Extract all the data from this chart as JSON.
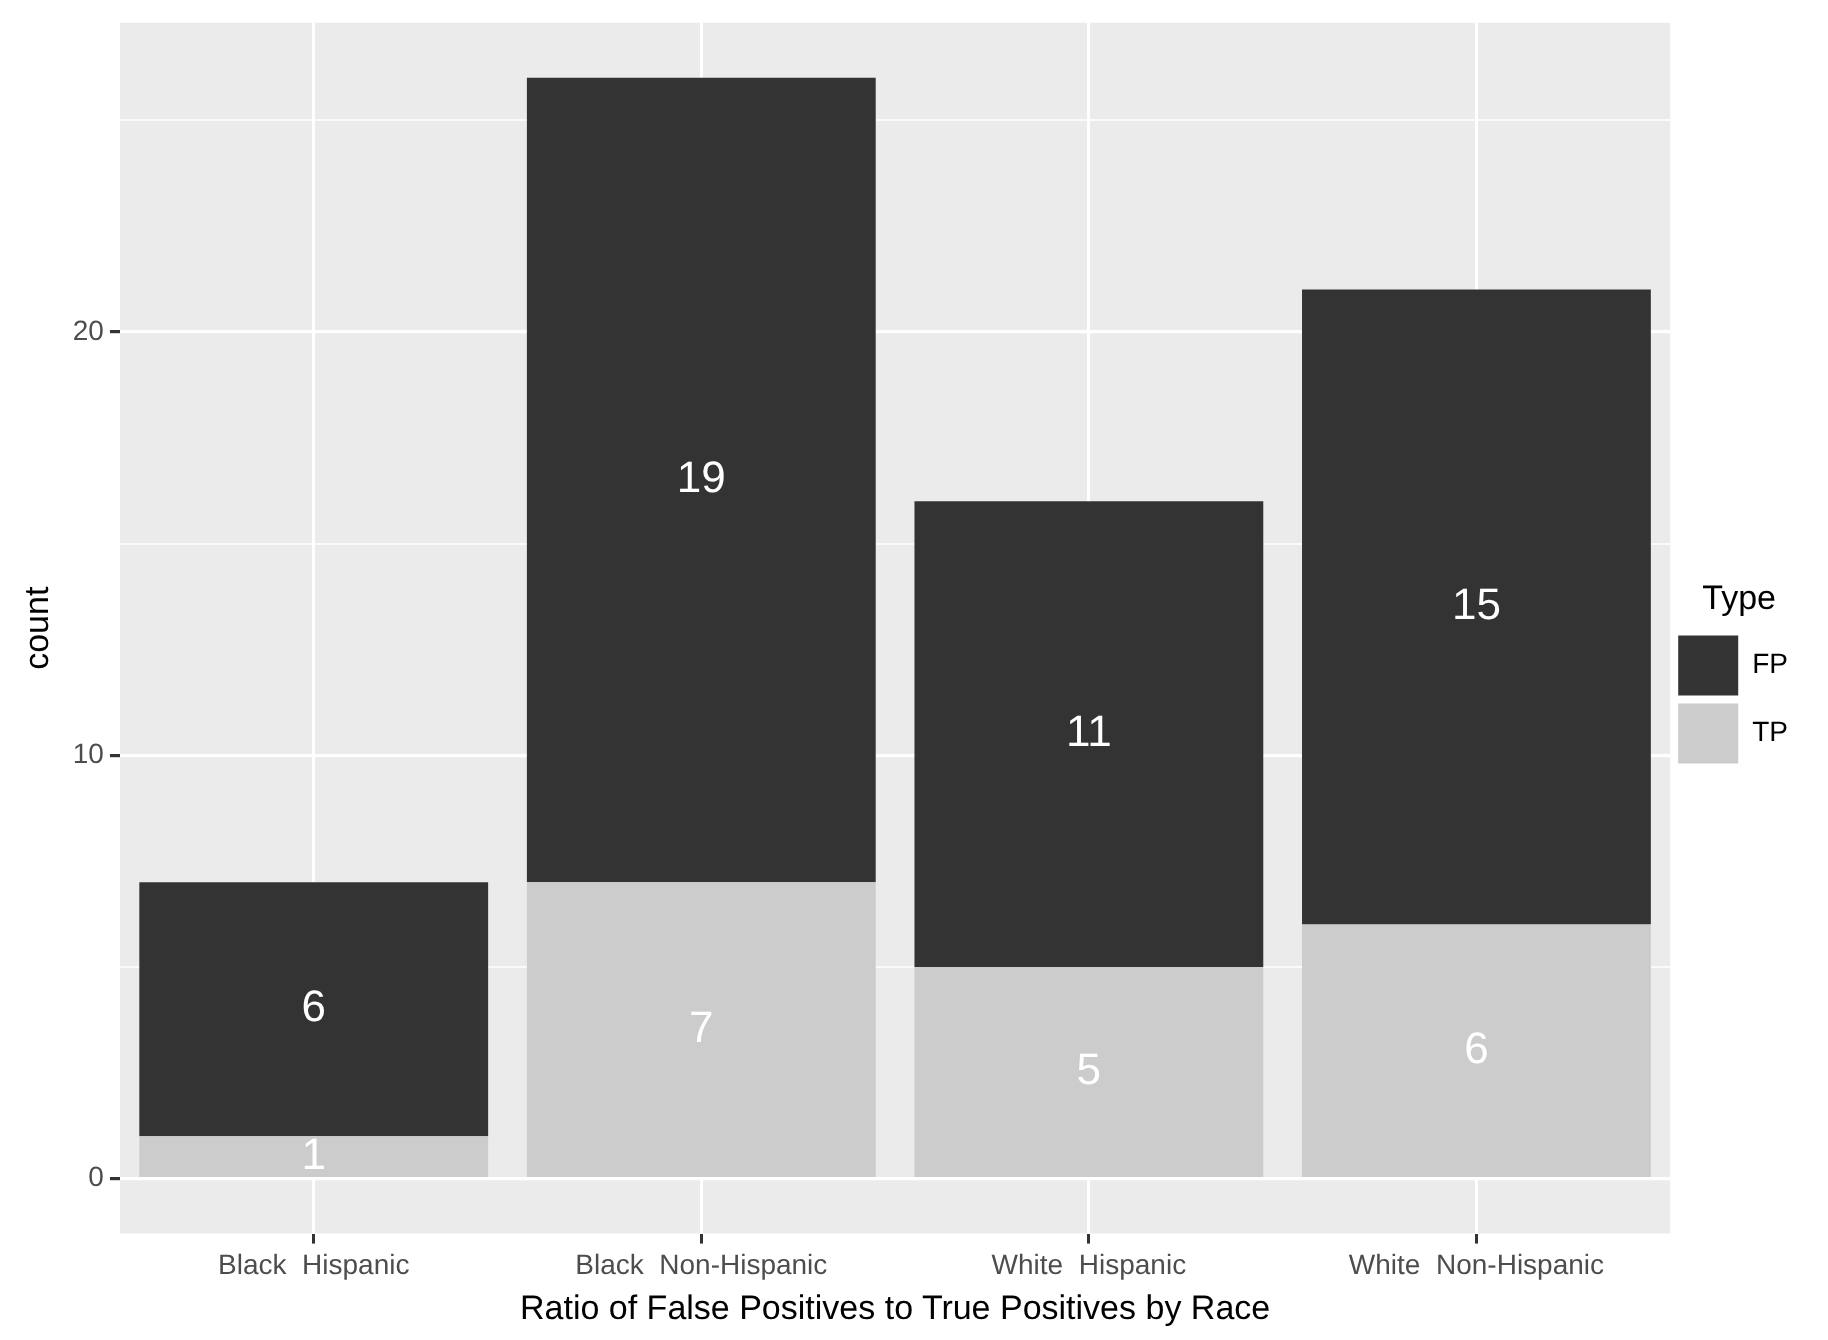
{
  "chart_data": {
    "type": "bar",
    "stacked": true,
    "xlabel": "Ratio of False Positives to True Positives by Race",
    "ylabel": "count",
    "legend_title": "Type",
    "categories": [
      "Black  Hispanic",
      "Black  Non-Hispanic",
      "White  Hispanic",
      "White  Non-Hispanic"
    ],
    "series": [
      {
        "name": "TP",
        "color": "#cccccc",
        "values": [
          1,
          7,
          5,
          6
        ]
      },
      {
        "name": "FP",
        "color": "#333333",
        "values": [
          6,
          19,
          11,
          15
        ]
      }
    ],
    "ylim": [
      -1.3,
      27.3
    ],
    "yticks": [
      0,
      {
        "value": 5,
        "label": null
      },
      10,
      {
        "value": 15,
        "label": null
      },
      20,
      {
        "value": 25,
        "label": null
      }
    ],
    "grid": true,
    "legend": "right",
    "data_labels": true
  }
}
